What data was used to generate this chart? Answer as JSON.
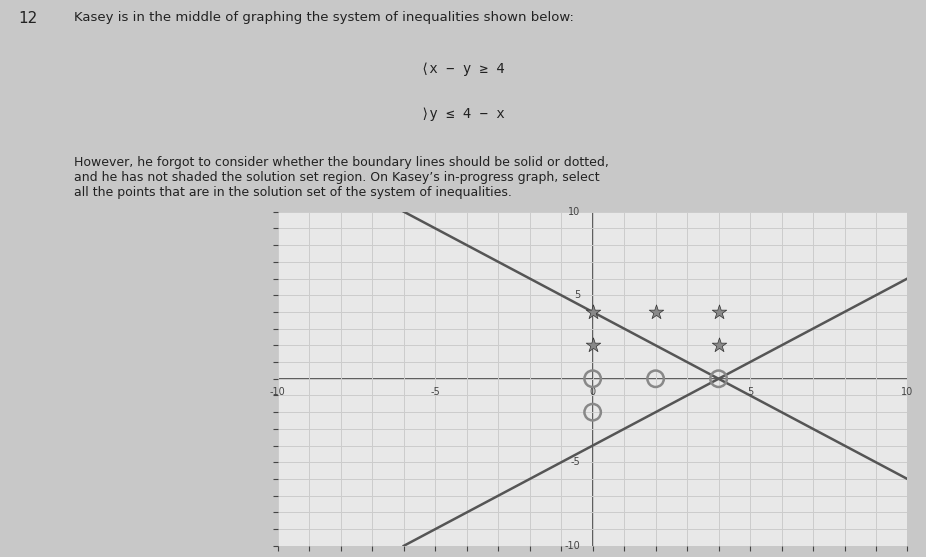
{
  "title_num": "12",
  "title_text": "Kasey is in the middle of graphing the system of inequalities shown below:",
  "system_line1": "x − y ≥ 4",
  "system_line2": "y ≤ 4 − x",
  "body_text": "However, he forgot to consider whether the boundary lines should be solid or dotted,\nand he has not shaded the solution set region. On Kasey’s in-progress graph, select\nall the points that are in the solution set of the system of inequalities.",
  "xlim": [
    -10,
    10
  ],
  "ylim": [
    -10,
    10
  ],
  "grid_color": "#cccccc",
  "bg_color": "#e8e8e8",
  "line_color": "#555555",
  "line_width": 1.8,
  "star_points": [
    [
      0,
      4
    ],
    [
      2,
      4
    ],
    [
      4,
      4
    ],
    [
      0,
      2
    ],
    [
      4,
      2
    ]
  ],
  "circle_points": [
    [
      0,
      0
    ],
    [
      2,
      0
    ],
    [
      4,
      0
    ],
    [
      0,
      -2
    ]
  ],
  "star_color": "#888888",
  "circle_color": "#888888",
  "star_size": 120,
  "circle_size": 140,
  "axis_label_color": "#444444",
  "text_color": "#333333",
  "paper_color": "#d8d8d8",
  "font_size_title": 10,
  "font_size_body": 9
}
